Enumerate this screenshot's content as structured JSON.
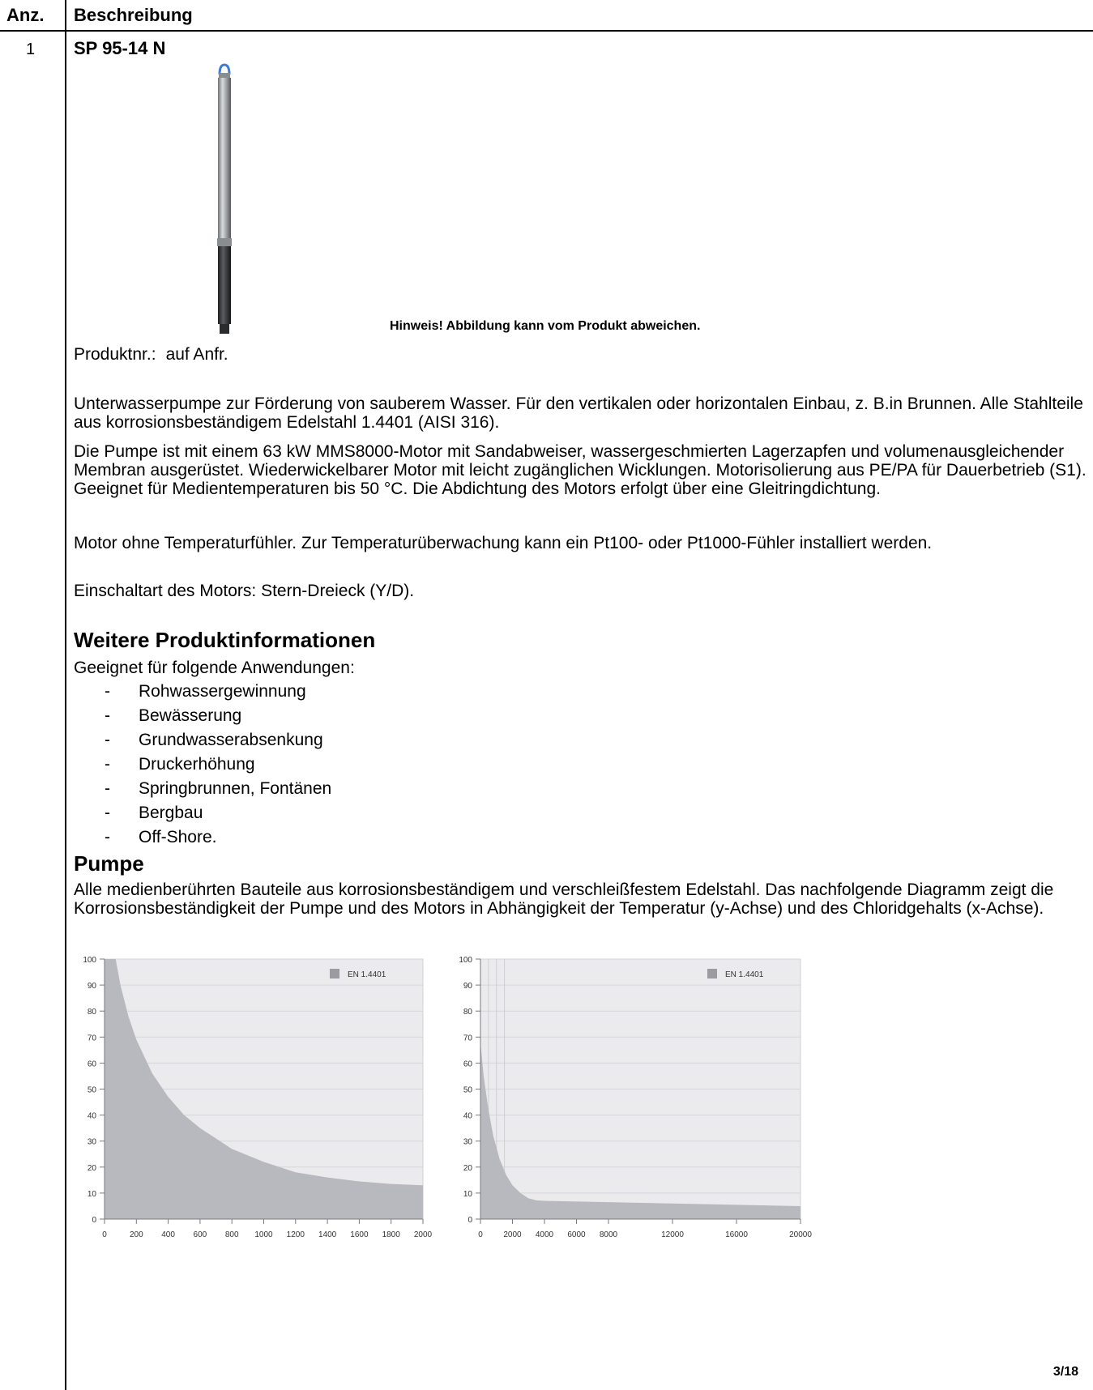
{
  "table": {
    "col_qty": "Anz.",
    "col_desc": "Beschreibung",
    "row_qty": "1",
    "model": "SP 95-14 N"
  },
  "image_note": "Hinweis! Abbildung kann vom Produkt abweichen.",
  "product_number": {
    "label": "Produktnr.:",
    "value": "auf Anfr."
  },
  "paragraphs": [
    "Unterwasserpumpe zur Förderung von sauberem Wasser. Für den vertikalen oder horizontalen Einbau, z. B.in Brunnen. Alle Stahlteile aus korrosionsbeständigem Edelstahl 1.4401 (AISI 316).",
    "Die Pumpe ist mit einem 63 kW MMS8000-Motor mit Sandabweiser, wassergeschmierten Lagerzapfen und volumenausgleichender Membran ausgerüstet. Wiederwickelbarer Motor mit leicht zugänglichen Wicklungen. Motorisolierung aus PE/PA für Dauerbetrieb (S1). Geeignet für Medientemperaturen bis 50 °C. Die Abdichtung des Motors erfolgt über eine Gleitringdichtung.",
    "Motor ohne Temperaturfühler. Zur Temperaturüberwachung kann ein Pt100- oder Pt1000-Fühler installiert werden.",
    "Einschaltart des Motors: Stern-Dreieck (Y/D)."
  ],
  "section_more": {
    "heading": "Weitere Produktinformationen",
    "intro": "Geeignet für folgende Anwendungen:",
    "items": [
      "Rohwassergewinnung",
      "Bewässerung",
      "Grundwasserabsenkung",
      "Druckerhöhung",
      "Springbrunnen, Fontänen",
      "Bergbau",
      "Off-Shore."
    ]
  },
  "section_pump": {
    "heading": "Pumpe",
    "text": "Alle medienberührten Bauteile aus korrosionsbeständigem und verschleißfestem Edelstahl. Das nachfolgende Diagramm zeigt die Korrosionsbeständigkeit der Pumpe und des Motors in Abhängigkeit der Temperatur (y-Achse) und des Chloridgehalts (x-Achse)."
  },
  "chart_data": [
    {
      "type": "area",
      "legend": "EN 1.4401",
      "legend_position": "top-right",
      "xlim": [
        0,
        2000
      ],
      "ylim": [
        0,
        100
      ],
      "xticks": [
        0,
        200,
        400,
        600,
        800,
        1000,
        1200,
        1400,
        1600,
        1800,
        2000
      ],
      "yticks": [
        0,
        10,
        20,
        30,
        40,
        50,
        60,
        70,
        80,
        90,
        100
      ],
      "grid": true,
      "x": [
        0,
        70,
        100,
        150,
        200,
        300,
        400,
        500,
        600,
        800,
        1000,
        1200,
        1400,
        1600,
        1800,
        2000
      ],
      "y": [
        100,
        100,
        90,
        78,
        69,
        56,
        47,
        40,
        35,
        27,
        22,
        18,
        16,
        14.5,
        13.5,
        13
      ],
      "color": "#b8b9be"
    },
    {
      "type": "area",
      "legend": "EN 1.4401",
      "legend_position": "top-right",
      "xlim": [
        0,
        20000
      ],
      "ylim": [
        0,
        100
      ],
      "xticks": [
        0,
        2000,
        4000,
        6000,
        8000,
        12000,
        16000,
        20000
      ],
      "yticks": [
        0,
        10,
        20,
        30,
        40,
        50,
        60,
        70,
        80,
        90,
        100
      ],
      "grid": true,
      "x": [
        0,
        200,
        500,
        800,
        1200,
        1600,
        2000,
        2500,
        3000,
        3500,
        4000,
        8000,
        12000,
        16000,
        20000
      ],
      "y": [
        68,
        55,
        42,
        32,
        23,
        17,
        13,
        10,
        8,
        7.2,
        7,
        6.5,
        6,
        5.5,
        5
      ],
      "color": "#b8b9be"
    }
  ],
  "page_number": "3/18",
  "colors": {
    "area": "#b8b9be",
    "chart_bg": "#ebebee",
    "legend_swatch": "#9b9ca1",
    "pump_cap": "#3b7dd8"
  }
}
